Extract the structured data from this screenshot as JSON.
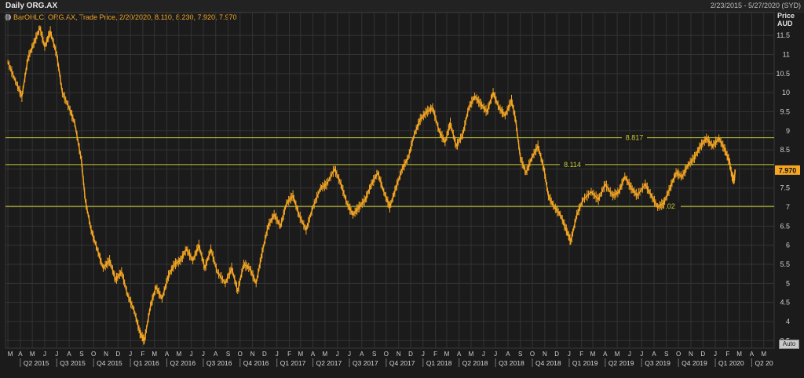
{
  "header": {
    "title": "Daily ORG.AX",
    "date_range": "2/23/2015 - 5/27/2020 (SYD)"
  },
  "legend": {
    "text": "BarOHLC, ORG.AX, Trade Price, 2/20/2020, 8.110, 8.230, 7.920, 7.970"
  },
  "price_axis": {
    "line1": "Price",
    "line2": "AUD"
  },
  "auto_button": "Auto",
  "colors": {
    "series": "#f5a623",
    "hline": "#c8c832",
    "last_price_bg": "#f5a623",
    "grid": "#333333"
  },
  "chart_data": {
    "type": "line",
    "series_name": "ORG.AX",
    "y_unit": "AUD",
    "ylim": [
      3.3,
      12.1
    ],
    "y_ticks": [
      3.5,
      4,
      4.5,
      5,
      5.5,
      6,
      6.5,
      7,
      7.5,
      8,
      8.5,
      9,
      9.5,
      10,
      10.5,
      11,
      11.5
    ],
    "x_range": [
      "2015-02-23",
      "2020-05-27"
    ],
    "last_price": "7.970",
    "last_price_value": 7.97,
    "horizontal_lines": [
      {
        "label": "8.817",
        "value": 8.817
      },
      {
        "label": "8.114",
        "value": 8.114
      },
      {
        "label": "7.02",
        "value": 7.02
      }
    ],
    "month_ticks": [
      "M",
      "A",
      "M",
      "J",
      "J",
      "A",
      "S",
      "O",
      "N",
      "D",
      "J",
      "F",
      "M",
      "A",
      "M",
      "J",
      "J",
      "A",
      "S",
      "O",
      "N",
      "D",
      "J",
      "F",
      "M",
      "A",
      "M",
      "J",
      "J",
      "A",
      "S",
      "O",
      "N",
      "D",
      "J",
      "F",
      "M",
      "A",
      "M",
      "J",
      "J",
      "A",
      "S",
      "O",
      "N",
      "D",
      "J",
      "F",
      "M",
      "A",
      "M",
      "J",
      "J",
      "A",
      "S",
      "O",
      "N",
      "D",
      "J",
      "F",
      "M",
      "A",
      "M"
    ],
    "quarter_labels": [
      "Q2 2015",
      "Q3 2015",
      "Q4 2015",
      "Q1 2016",
      "Q2 2016",
      "Q3 2016",
      "Q4 2016",
      "Q1 2017",
      "Q2 2017",
      "Q3 2017",
      "Q4 2017",
      "Q1 2018",
      "Q2 2018",
      "Q3 2018",
      "Q4 2018",
      "Q1 2019",
      "Q2 2019",
      "Q3 2019",
      "Q4 2019",
      "Q1 2020",
      "Q2 20"
    ],
    "points": [
      {
        "date": "2015-03-01",
        "value": 10.8
      },
      {
        "date": "2015-03-20",
        "value": 10.3
      },
      {
        "date": "2015-04-05",
        "value": 9.9
      },
      {
        "date": "2015-04-20",
        "value": 10.9
      },
      {
        "date": "2015-05-05",
        "value": 11.3
      },
      {
        "date": "2015-05-20",
        "value": 11.7
      },
      {
        "date": "2015-06-01",
        "value": 11.2
      },
      {
        "date": "2015-06-15",
        "value": 11.6
      },
      {
        "date": "2015-07-01",
        "value": 11.0
      },
      {
        "date": "2015-07-15",
        "value": 10.0
      },
      {
        "date": "2015-08-01",
        "value": 9.6
      },
      {
        "date": "2015-08-15",
        "value": 9.2
      },
      {
        "date": "2015-09-01",
        "value": 8.2
      },
      {
        "date": "2015-09-10",
        "value": 7.2
      },
      {
        "date": "2015-09-25",
        "value": 6.4
      },
      {
        "date": "2015-10-10",
        "value": 5.9
      },
      {
        "date": "2015-10-25",
        "value": 5.4
      },
      {
        "date": "2015-11-10",
        "value": 5.6
      },
      {
        "date": "2015-11-25",
        "value": 5.1
      },
      {
        "date": "2015-12-10",
        "value": 5.3
      },
      {
        "date": "2015-12-25",
        "value": 4.7
      },
      {
        "date": "2016-01-10",
        "value": 4.3
      },
      {
        "date": "2016-01-25",
        "value": 3.7
      },
      {
        "date": "2016-02-05",
        "value": 3.5
      },
      {
        "date": "2016-02-20",
        "value": 4.4
      },
      {
        "date": "2016-03-05",
        "value": 4.9
      },
      {
        "date": "2016-03-20",
        "value": 4.6
      },
      {
        "date": "2016-04-05",
        "value": 5.2
      },
      {
        "date": "2016-04-20",
        "value": 5.5
      },
      {
        "date": "2016-05-05",
        "value": 5.6
      },
      {
        "date": "2016-05-20",
        "value": 5.9
      },
      {
        "date": "2016-06-05",
        "value": 5.6
      },
      {
        "date": "2016-06-20",
        "value": 6.0
      },
      {
        "date": "2016-07-05",
        "value": 5.4
      },
      {
        "date": "2016-07-20",
        "value": 5.9
      },
      {
        "date": "2016-08-05",
        "value": 5.3
      },
      {
        "date": "2016-08-25",
        "value": 5.0
      },
      {
        "date": "2016-09-10",
        "value": 5.4
      },
      {
        "date": "2016-09-25",
        "value": 4.8
      },
      {
        "date": "2016-10-10",
        "value": 5.5
      },
      {
        "date": "2016-10-25",
        "value": 5.4
      },
      {
        "date": "2016-11-10",
        "value": 5.0
      },
      {
        "date": "2016-11-25",
        "value": 5.8
      },
      {
        "date": "2016-12-10",
        "value": 6.5
      },
      {
        "date": "2016-12-25",
        "value": 6.8
      },
      {
        "date": "2017-01-10",
        "value": 6.5
      },
      {
        "date": "2017-01-25",
        "value": 7.1
      },
      {
        "date": "2017-02-10",
        "value": 7.3
      },
      {
        "date": "2017-02-25",
        "value": 6.8
      },
      {
        "date": "2017-03-15",
        "value": 6.4
      },
      {
        "date": "2017-04-01",
        "value": 7.0
      },
      {
        "date": "2017-04-20",
        "value": 7.5
      },
      {
        "date": "2017-05-05",
        "value": 7.6
      },
      {
        "date": "2017-05-25",
        "value": 8.0
      },
      {
        "date": "2017-06-10",
        "value": 7.6
      },
      {
        "date": "2017-06-25",
        "value": 7.1
      },
      {
        "date": "2017-07-10",
        "value": 6.8
      },
      {
        "date": "2017-07-25",
        "value": 7.0
      },
      {
        "date": "2017-08-10",
        "value": 7.2
      },
      {
        "date": "2017-08-25",
        "value": 7.6
      },
      {
        "date": "2017-09-10",
        "value": 7.9
      },
      {
        "date": "2017-09-25",
        "value": 7.4
      },
      {
        "date": "2017-10-10",
        "value": 7.0
      },
      {
        "date": "2017-10-25",
        "value": 7.5
      },
      {
        "date": "2017-11-10",
        "value": 8.0
      },
      {
        "date": "2017-11-25",
        "value": 8.3
      },
      {
        "date": "2017-12-10",
        "value": 8.9
      },
      {
        "date": "2017-12-25",
        "value": 9.3
      },
      {
        "date": "2018-01-10",
        "value": 9.5
      },
      {
        "date": "2018-01-25",
        "value": 9.6
      },
      {
        "date": "2018-02-10",
        "value": 9.0
      },
      {
        "date": "2018-02-25",
        "value": 8.7
      },
      {
        "date": "2018-03-10",
        "value": 9.2
      },
      {
        "date": "2018-03-25",
        "value": 8.6
      },
      {
        "date": "2018-04-10",
        "value": 8.9
      },
      {
        "date": "2018-04-25",
        "value": 9.6
      },
      {
        "date": "2018-05-10",
        "value": 9.9
      },
      {
        "date": "2018-05-25",
        "value": 9.7
      },
      {
        "date": "2018-06-10",
        "value": 9.5
      },
      {
        "date": "2018-06-25",
        "value": 10.0
      },
      {
        "date": "2018-07-10",
        "value": 9.6
      },
      {
        "date": "2018-07-25",
        "value": 9.4
      },
      {
        "date": "2018-08-10",
        "value": 9.8
      },
      {
        "date": "2018-08-20",
        "value": 9.3
      },
      {
        "date": "2018-09-01",
        "value": 8.3
      },
      {
        "date": "2018-09-15",
        "value": 7.9
      },
      {
        "date": "2018-09-30",
        "value": 8.3
      },
      {
        "date": "2018-10-15",
        "value": 8.6
      },
      {
        "date": "2018-10-30",
        "value": 8.0
      },
      {
        "date": "2018-11-10",
        "value": 7.3
      },
      {
        "date": "2018-11-25",
        "value": 7.0
      },
      {
        "date": "2018-12-10",
        "value": 6.8
      },
      {
        "date": "2018-12-25",
        "value": 6.4
      },
      {
        "date": "2019-01-05",
        "value": 6.1
      },
      {
        "date": "2019-01-20",
        "value": 6.8
      },
      {
        "date": "2019-02-05",
        "value": 7.2
      },
      {
        "date": "2019-02-25",
        "value": 7.4
      },
      {
        "date": "2019-03-15",
        "value": 7.2
      },
      {
        "date": "2019-04-01",
        "value": 7.6
      },
      {
        "date": "2019-04-20",
        "value": 7.3
      },
      {
        "date": "2019-05-05",
        "value": 7.4
      },
      {
        "date": "2019-05-20",
        "value": 7.8
      },
      {
        "date": "2019-06-05",
        "value": 7.5
      },
      {
        "date": "2019-06-20",
        "value": 7.3
      },
      {
        "date": "2019-07-10",
        "value": 7.6
      },
      {
        "date": "2019-07-25",
        "value": 7.3
      },
      {
        "date": "2019-08-10",
        "value": 7.0
      },
      {
        "date": "2019-08-25",
        "value": 7.1
      },
      {
        "date": "2019-09-10",
        "value": 7.5
      },
      {
        "date": "2019-09-25",
        "value": 7.9
      },
      {
        "date": "2019-10-10",
        "value": 7.8
      },
      {
        "date": "2019-10-25",
        "value": 8.1
      },
      {
        "date": "2019-11-10",
        "value": 8.3
      },
      {
        "date": "2019-11-25",
        "value": 8.6
      },
      {
        "date": "2019-12-10",
        "value": 8.8
      },
      {
        "date": "2019-12-25",
        "value": 8.6
      },
      {
        "date": "2020-01-10",
        "value": 8.8
      },
      {
        "date": "2020-01-25",
        "value": 8.5
      },
      {
        "date": "2020-02-05",
        "value": 8.2
      },
      {
        "date": "2020-02-12",
        "value": 7.8
      },
      {
        "date": "2020-02-17",
        "value": 7.7
      },
      {
        "date": "2020-02-20",
        "value": 7.97
      }
    ]
  }
}
